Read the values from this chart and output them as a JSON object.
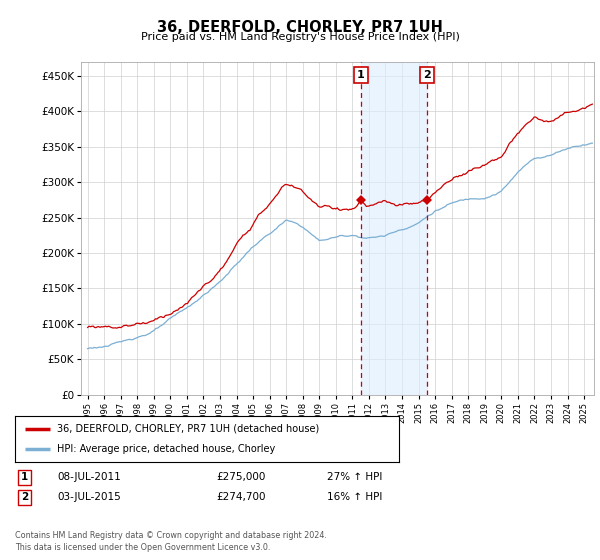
{
  "title": "36, DEERFOLD, CHORLEY, PR7 1UH",
  "subtitle": "Price paid vs. HM Land Registry's House Price Index (HPI)",
  "ylabel_ticks": [
    "£0",
    "£50K",
    "£100K",
    "£150K",
    "£200K",
    "£250K",
    "£300K",
    "£350K",
    "£400K",
    "£450K"
  ],
  "ytick_values": [
    0,
    50000,
    100000,
    150000,
    200000,
    250000,
    300000,
    350000,
    400000,
    450000
  ],
  "ylim": [
    0,
    470000
  ],
  "sale1_x": 2011.52,
  "sale1_price": 275000,
  "sale2_x": 2015.5,
  "sale2_price": 274700,
  "sale1_label": "08-JUL-2011",
  "sale1_amount": "£275,000",
  "sale1_hpi": "27% ↑ HPI",
  "sale2_label": "03-JUL-2015",
  "sale2_amount": "£274,700",
  "sale2_hpi": "16% ↑ HPI",
  "legend_house": "36, DEERFOLD, CHORLEY, PR7 1UH (detached house)",
  "legend_hpi": "HPI: Average price, detached house, Chorley",
  "footer": "Contains HM Land Registry data © Crown copyright and database right 2024.\nThis data is licensed under the Open Government Licence v3.0.",
  "house_color": "#cc0000",
  "hpi_color": "#7bafd4",
  "background_color": "#ffffff",
  "grid_color": "#d0d0d0",
  "shade_color": "#ddeeff",
  "xstart": 1995,
  "xend": 2025
}
